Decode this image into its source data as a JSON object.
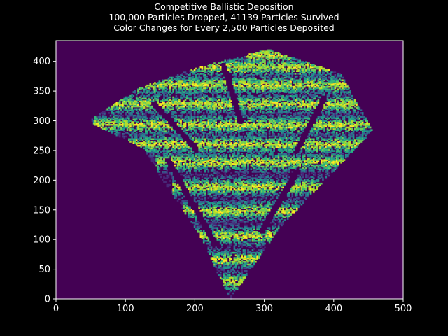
{
  "chart_data": {
    "type": "heatmap",
    "title_lines": [
      "Competitive Ballistic Deposition",
      "100,000 Particles Dropped, 41139 Particles Survived",
      "Color Changes for Every 2,500 Particles Deposited"
    ],
    "xlabel": "",
    "ylabel": "",
    "xlim": [
      0,
      500
    ],
    "ylim": [
      0,
      435
    ],
    "xticks": [
      0,
      100,
      200,
      300,
      400,
      500
    ],
    "yticks": [
      0,
      50,
      100,
      150,
      200,
      250,
      300,
      350,
      400
    ],
    "particles_dropped": 100000,
    "particles_survived": 41139,
    "particles_per_color": 2500,
    "seed_column": 250,
    "colormap": "viridis",
    "colors": {
      "background": "#000000",
      "axes_face": "#440154",
      "spine": "#ffffff",
      "text": "#ffffff",
      "palette": [
        "#482878",
        "#3e4a89",
        "#31688e",
        "#26828e",
        "#1f9e89",
        "#35b779",
        "#6ece58",
        "#b5de2b",
        "#fde725"
      ]
    },
    "envelope_outline": [
      [
        250,
        0
      ],
      [
        205,
        110
      ],
      [
        150,
        205
      ],
      [
        125,
        255
      ],
      [
        45,
        300
      ],
      [
        115,
        355
      ],
      [
        200,
        390
      ],
      [
        305,
        422
      ],
      [
        410,
        380
      ],
      [
        455,
        285
      ],
      [
        385,
        200
      ],
      [
        320,
        120
      ],
      [
        250,
        0
      ]
    ],
    "bands": [
      {
        "y": 30,
        "x0": 218,
        "x1": 282
      },
      {
        "y": 68,
        "x0": 212,
        "x1": 300
      },
      {
        "y": 108,
        "x0": 205,
        "x1": 325
      },
      {
        "y": 150,
        "x0": 190,
        "x1": 360
      },
      {
        "y": 190,
        "x0": 175,
        "x1": 395
      },
      {
        "y": 232,
        "x0": 150,
        "x1": 420
      },
      {
        "y": 262,
        "x0": 110,
        "x1": 445
      },
      {
        "y": 295,
        "x0": 60,
        "x1": 455
      },
      {
        "y": 330,
        "x0": 80,
        "x1": 440
      },
      {
        "y": 362,
        "x0": 115,
        "x1": 420
      },
      {
        "y": 392,
        "x0": 200,
        "x1": 390
      },
      {
        "y": 412,
        "x0": 280,
        "x1": 330
      }
    ],
    "gaps": [
      {
        "x0": 228,
        "y0": 95,
        "x1": 160,
        "y1": 235
      },
      {
        "x0": 295,
        "y0": 115,
        "x1": 345,
        "y1": 215
      },
      {
        "x0": 200,
        "y0": 255,
        "x1": 140,
        "y1": 330
      },
      {
        "x0": 345,
        "y0": 250,
        "x1": 385,
        "y1": 340
      },
      {
        "x0": 265,
        "y0": 300,
        "x1": 240,
        "y1": 395
      }
    ]
  }
}
